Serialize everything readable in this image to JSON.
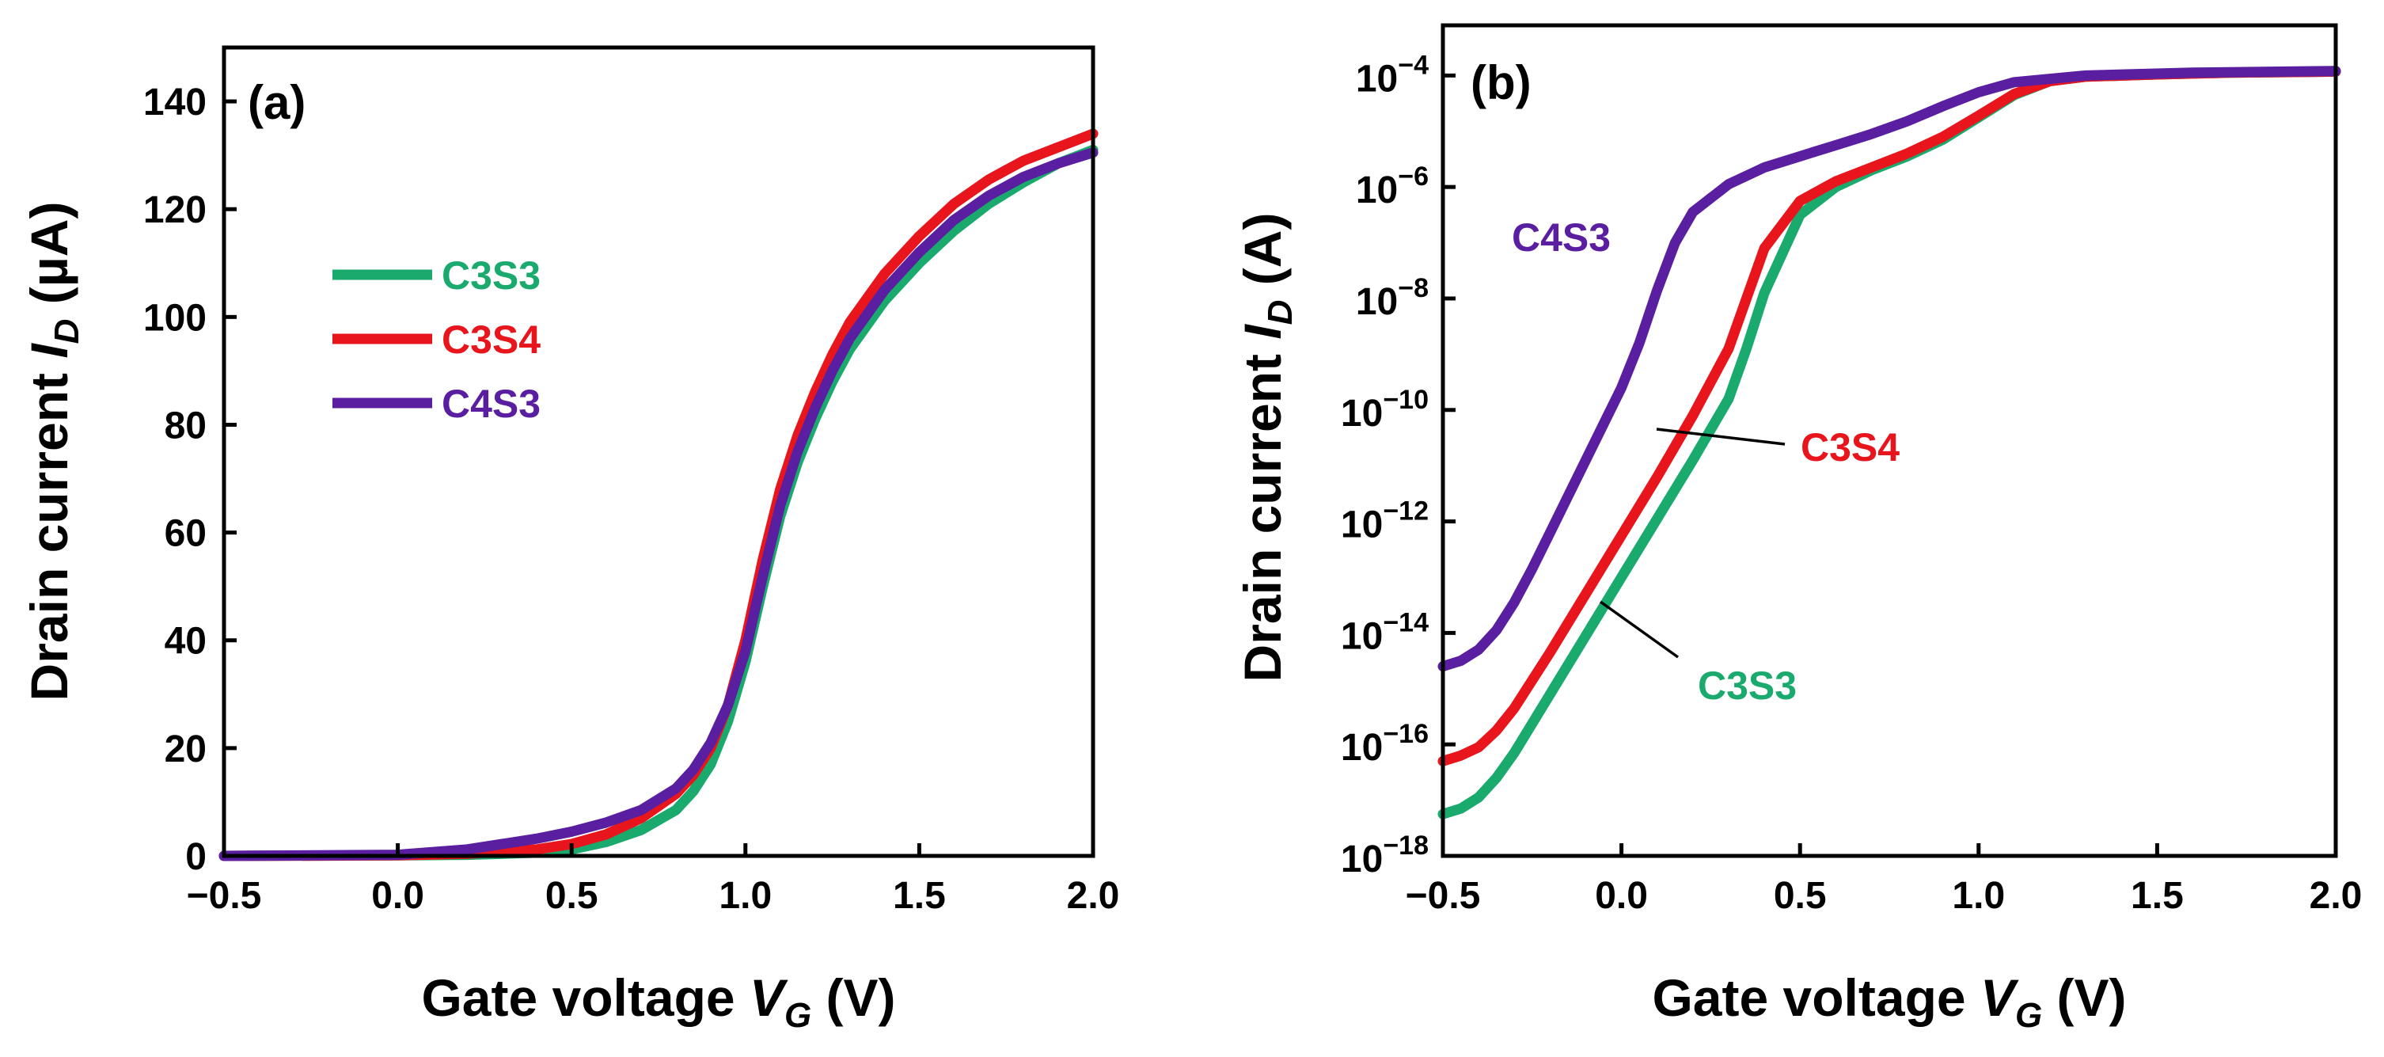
{
  "colors": {
    "C3S3": "#1aaa6e",
    "C3S4": "#e8161c",
    "C4S3": "#5a1fa0"
  },
  "chart_data": [
    {
      "type": "line",
      "panel": "(a)",
      "title": "",
      "xlabel": "Gate voltage V_G (V)",
      "xlabel_main": "Gate voltage ",
      "xlabel_var": "V",
      "xlabel_sub": "G",
      "xlabel_unit": " (V)",
      "ylabel": "Drain current I_D (µA)",
      "ylabel_main": "Drain current ",
      "ylabel_var": "I",
      "ylabel_sub": "D",
      "ylabel_unit": " (µA)",
      "xlim": [
        -0.5,
        2.0
      ],
      "ylim": [
        0,
        150
      ],
      "yscale": "linear",
      "x_ticks": [
        -0.5,
        0.0,
        0.5,
        1.0,
        1.5,
        2.0
      ],
      "x_tick_labels": [
        "−0.5",
        "0.0",
        "0.5",
        "1.0",
        "1.5",
        "2.0"
      ],
      "y_ticks": [
        0,
        20,
        40,
        60,
        80,
        100,
        120,
        140
      ],
      "y_tick_labels": [
        "0",
        "20",
        "40",
        "60",
        "80",
        "100",
        "120",
        "140"
      ],
      "legend": {
        "placement": "upper-left",
        "entries": [
          "C3S3",
          "C3S4",
          "C4S3"
        ]
      },
      "series": [
        {
          "name": "C3S3",
          "x": [
            -0.5,
            0.0,
            0.2,
            0.4,
            0.5,
            0.6,
            0.7,
            0.8,
            0.85,
            0.9,
            0.95,
            1.0,
            1.05,
            1.1,
            1.15,
            1.2,
            1.25,
            1.3,
            1.4,
            1.5,
            1.6,
            1.7,
            1.8,
            1.9,
            2.0
          ],
          "y": [
            0.0,
            0.1,
            0.2,
            0.6,
            1.2,
            2.6,
            4.8,
            8.5,
            12,
            17,
            25,
            36,
            50,
            63,
            73,
            81,
            88,
            94,
            103,
            110,
            116,
            121,
            125,
            128.5,
            131
          ]
        },
        {
          "name": "C3S4",
          "x": [
            -0.5,
            0.0,
            0.2,
            0.4,
            0.5,
            0.6,
            0.7,
            0.8,
            0.85,
            0.9,
            0.95,
            1.0,
            1.05,
            1.1,
            1.15,
            1.2,
            1.25,
            1.3,
            1.4,
            1.5,
            1.6,
            1.7,
            1.8,
            1.9,
            2.0
          ],
          "y": [
            0.0,
            0.1,
            0.4,
            1.2,
            2.2,
            4.0,
            7.0,
            11.5,
            15,
            20,
            28,
            40,
            55,
            68,
            78,
            86,
            93,
            99,
            108,
            115,
            121,
            125.5,
            129,
            131.5,
            134
          ]
        },
        {
          "name": "C4S3",
          "x": [
            -0.5,
            0.0,
            0.2,
            0.4,
            0.5,
            0.6,
            0.7,
            0.8,
            0.85,
            0.9,
            0.95,
            1.0,
            1.05,
            1.1,
            1.15,
            1.2,
            1.25,
            1.3,
            1.4,
            1.5,
            1.6,
            1.7,
            1.8,
            1.9,
            2.0
          ],
          "y": [
            0.0,
            0.2,
            1.2,
            3.2,
            4.5,
            6.2,
            8.5,
            12.5,
            16,
            21,
            28,
            38,
            52,
            65,
            75,
            83,
            90,
            96,
            105,
            112,
            118,
            122.5,
            126,
            128.5,
            130.5
          ]
        }
      ]
    },
    {
      "type": "line",
      "panel": "(b)",
      "title": "",
      "xlabel": "Gate voltage V_G (V)",
      "xlabel_main": "Gate voltage ",
      "xlabel_var": "V",
      "xlabel_sub": "G",
      "xlabel_unit": " (V)",
      "ylabel": "Drain current I_D (A)",
      "ylabel_main": "Drain current ",
      "ylabel_var": "I",
      "ylabel_sub": "D",
      "ylabel_unit": " (A)",
      "xlim": [
        -0.5,
        2.0
      ],
      "ylim_log10": [
        -18,
        -3.1
      ],
      "yscale": "log",
      "x_ticks": [
        -0.5,
        0.0,
        0.5,
        1.0,
        1.5,
        2.0
      ],
      "x_tick_labels": [
        "−0.5",
        "0.0",
        "0.5",
        "1.0",
        "1.5",
        "2.0"
      ],
      "y_tick_exponents": [
        -18,
        -16,
        -14,
        -12,
        -10,
        -8,
        -6,
        -4
      ],
      "y_tick_bases": [
        "10",
        "10",
        "10",
        "10",
        "10",
        "10",
        "10",
        "10"
      ],
      "y_tick_powers": [
        "−18",
        "−16",
        "−14",
        "−12",
        "−10",
        "−8",
        "−6",
        "−4"
      ],
      "annotations": [
        {
          "text": "C4S3",
          "series": "C4S3"
        },
        {
          "text": "C3S4",
          "series": "C3S4"
        },
        {
          "text": "C3S3",
          "series": "C3S3"
        }
      ],
      "series": [
        {
          "name": "C3S3",
          "x": [
            -0.5,
            -0.45,
            -0.4,
            -0.35,
            -0.3,
            -0.2,
            -0.1,
            0.0,
            0.1,
            0.2,
            0.3,
            0.35,
            0.4,
            0.5,
            0.6,
            0.7,
            0.8,
            0.9,
            1.0,
            1.1,
            1.2,
            1.3,
            1.5,
            1.7,
            2.0
          ],
          "log10_y": [
            -17.25,
            -17.15,
            -16.95,
            -16.6,
            -16.15,
            -15.1,
            -14.05,
            -13.0,
            -11.95,
            -10.9,
            -9.8,
            -8.9,
            -7.9,
            -6.5,
            -6.0,
            -5.7,
            -5.45,
            -5.15,
            -4.75,
            -4.35,
            -4.1,
            -4.02,
            -3.98,
            -3.95,
            -3.93
          ]
        },
        {
          "name": "C3S4",
          "x": [
            -0.5,
            -0.45,
            -0.4,
            -0.35,
            -0.3,
            -0.2,
            -0.1,
            0.0,
            0.1,
            0.2,
            0.3,
            0.35,
            0.4,
            0.5,
            0.6,
            0.7,
            0.8,
            0.9,
            1.0,
            1.1,
            1.2,
            1.3,
            1.5,
            1.7,
            2.0
          ],
          "log10_y": [
            -16.3,
            -16.2,
            -16.05,
            -15.75,
            -15.35,
            -14.35,
            -13.3,
            -12.25,
            -11.2,
            -10.1,
            -8.9,
            -8.0,
            -7.1,
            -6.25,
            -5.9,
            -5.65,
            -5.4,
            -5.1,
            -4.72,
            -4.33,
            -4.1,
            -4.02,
            -3.98,
            -3.95,
            -3.93
          ]
        },
        {
          "name": "C4S3",
          "x": [
            -0.5,
            -0.45,
            -0.4,
            -0.35,
            -0.3,
            -0.25,
            -0.2,
            -0.1,
            0.0,
            0.05,
            0.1,
            0.15,
            0.2,
            0.3,
            0.4,
            0.5,
            0.6,
            0.7,
            0.8,
            0.9,
            1.0,
            1.1,
            1.3,
            1.6,
            2.0
          ],
          "log10_y": [
            -14.6,
            -14.5,
            -14.3,
            -13.95,
            -13.45,
            -12.85,
            -12.2,
            -10.9,
            -9.6,
            -8.8,
            -7.85,
            -7.0,
            -6.45,
            -5.95,
            -5.65,
            -5.45,
            -5.25,
            -5.05,
            -4.82,
            -4.55,
            -4.3,
            -4.12,
            -4.0,
            -3.95,
            -3.92
          ]
        }
      ]
    }
  ]
}
